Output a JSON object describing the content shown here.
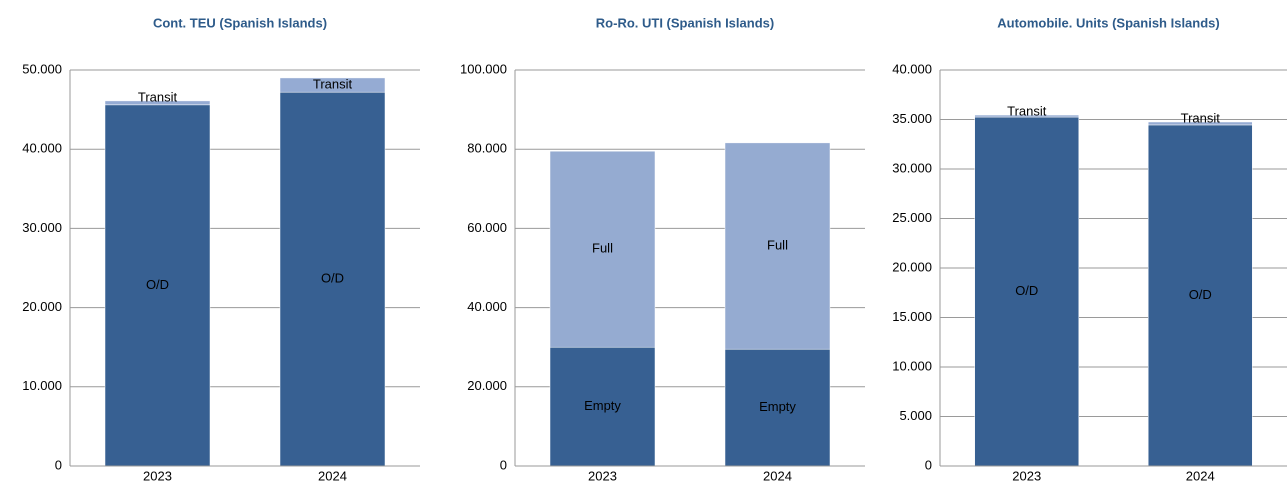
{
  "chart_data": [
    {
      "type": "bar",
      "stacked": true,
      "title": "Cont. TEU (Spanish Islands)",
      "categories": [
        "2023",
        "2024"
      ],
      "series": [
        {
          "name": "O/D",
          "color": "#376092",
          "values": [
            45600,
            47200
          ]
        },
        {
          "name": "Transit",
          "color": "#95abd3",
          "values": [
            500,
            1800
          ]
        }
      ],
      "ylim": [
        0,
        50000
      ],
      "yticks": [
        0,
        {
          "value": 10000,
          "label": "10.000"
        },
        {
          "value": 20000,
          "label": "20.000"
        },
        {
          "value": 30000,
          "label": "30.000"
        },
        {
          "value": 40000,
          "label": "40.000"
        },
        {
          "value": 50000,
          "label": "50.000"
        }
      ],
      "grid": true
    },
    {
      "type": "bar",
      "stacked": true,
      "title": "Ro-Ro. UTI (Spanish Islands)",
      "categories": [
        "2023",
        "2024"
      ],
      "series": [
        {
          "name": "Empty",
          "color": "#376092",
          "values": [
            30000,
            29500
          ]
        },
        {
          "name": "Full",
          "color": "#95abd1",
          "values": [
            49500,
            52100
          ]
        }
      ],
      "ylim": [
        0,
        100000
      ],
      "yticks": [
        0,
        {
          "value": 20000,
          "label": "20.000"
        },
        {
          "value": 40000,
          "label": "40.000"
        },
        {
          "value": 60000,
          "label": "60.000"
        },
        {
          "value": 80000,
          "label": "80.000"
        },
        {
          "value": 100000,
          "label": "100.000"
        }
      ],
      "grid": true
    },
    {
      "type": "bar",
      "stacked": true,
      "title": "Automobile. Units (Spanish Islands)",
      "categories": [
        "2023",
        "2024"
      ],
      "series": [
        {
          "name": "O/D",
          "color": "#376092",
          "values": [
            35250,
            34450
          ]
        },
        {
          "name": "Transit",
          "color": "#95abd3",
          "values": [
            200,
            300
          ]
        }
      ],
      "ylim": [
        0,
        40000
      ],
      "yticks": [
        0,
        {
          "value": 5000,
          "label": "5.000"
        },
        {
          "value": 10000,
          "label": "10.000"
        },
        {
          "value": 15000,
          "label": "15.000"
        },
        {
          "value": 20000,
          "label": "20.000"
        },
        {
          "value": 25000,
          "label": "25.000"
        },
        {
          "value": 30000,
          "label": "30.000"
        },
        {
          "value": 35000,
          "label": "35.000"
        },
        {
          "value": 40000,
          "label": "40.000"
        }
      ],
      "grid": true
    }
  ]
}
